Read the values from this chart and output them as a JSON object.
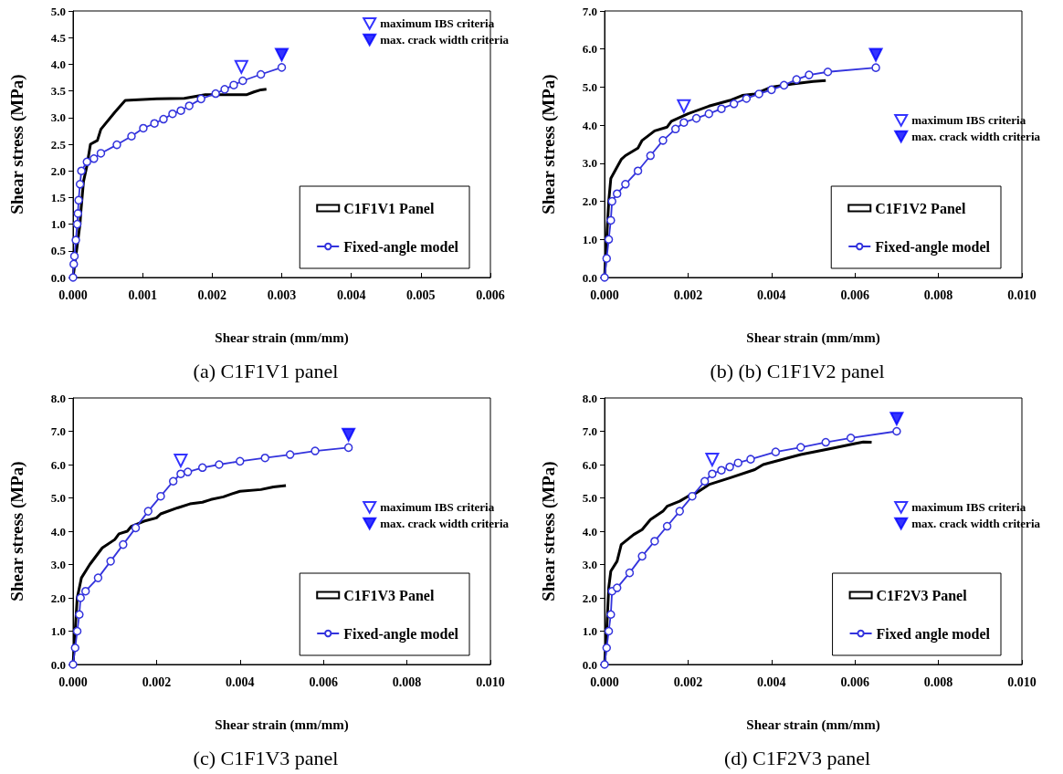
{
  "chart_data": [
    {
      "type": "line",
      "title": "(a) C1F1V1 panel",
      "xlabel": "Shear strain (mm/mm)",
      "ylabel": "Shear stress (MPa)",
      "legend": "top right",
      "grid": false,
      "xlim": [
        0,
        0.006
      ],
      "xticks": [
        {
          "value": 0,
          "label": "0.000"
        },
        {
          "value": 0.001,
          "label": "0.001"
        },
        {
          "value": 0.002,
          "label": "0.002"
        },
        {
          "value": 0.003,
          "label": "0.003"
        },
        {
          "value": 0.004,
          "label": "0.004"
        },
        {
          "value": 0.005,
          "label": "0.005"
        },
        {
          "value": 0.006,
          "label": "0.006"
        }
      ],
      "ylim": [
        0,
        5
      ],
      "yticks": [
        {
          "value": 0,
          "label": "0.0"
        },
        {
          "value": 0.5,
          "label": "0.5"
        },
        {
          "value": 1,
          "label": "1.0"
        },
        {
          "value": 1.5,
          "label": "1.5"
        },
        {
          "value": 2,
          "label": "2.0"
        },
        {
          "value": 2.5,
          "label": "2.5"
        },
        {
          "value": 3,
          "label": "3.0"
        },
        {
          "value": 3.5,
          "label": "3.5"
        },
        {
          "value": 4,
          "label": "4.0"
        },
        {
          "value": 4.5,
          "label": "4.5"
        },
        {
          "value": 5,
          "label": "5.0"
        }
      ],
      "series": [
        {
          "name": "C1F1V1 Panel",
          "color": "#000000",
          "marker": "none",
          "x": [
            0,
            5e-05,
            0.0001,
            0.00011,
            0.00015,
            0.0002,
            0.00025,
            0.00035,
            0.0004,
            0.0006,
            0.00075,
            0.0012,
            0.0016,
            0.0019,
            0.0025,
            0.0026,
            0.0027,
            0.00278
          ],
          "values": [
            0,
            0.5,
            1.0,
            1.2,
            1.8,
            2.1,
            2.5,
            2.57,
            2.78,
            3.1,
            3.32,
            3.35,
            3.36,
            3.43,
            3.43,
            3.48,
            3.52,
            3.53
          ]
        },
        {
          "name": "Fixed-angle model",
          "color": "#3333dd",
          "marker": "circle",
          "x": [
            0,
            1e-05,
            2e-05,
            4e-05,
            6e-05,
            7e-05,
            8e-05,
            0.0001,
            0.00012,
            0.0002,
            0.0003,
            0.0004,
            0.00063,
            0.00084,
            0.00101,
            0.00117,
            0.0013,
            0.00143,
            0.00155,
            0.00167,
            0.00184,
            0.00205,
            0.00218,
            0.00231,
            0.00244,
            0.0027,
            0.003
          ],
          "values": [
            0,
            0.25,
            0.4,
            0.7,
            1.0,
            1.2,
            1.45,
            1.75,
            2.0,
            2.17,
            2.23,
            2.33,
            2.49,
            2.65,
            2.8,
            2.89,
            2.97,
            3.07,
            3.13,
            3.22,
            3.35,
            3.45,
            3.53,
            3.61,
            3.69,
            3.81,
            3.94
          ]
        },
        {
          "type": "scatter",
          "name": "maximum IBS criteria",
          "color": "#0000ff",
          "marker": "triangle",
          "x": [
            0.00242
          ],
          "values": [
            3.95
          ]
        },
        {
          "type": "scatter",
          "name": "max. crack width criteria",
          "color": "#0000ff",
          "marker": "triangle",
          "x": [
            0.003
          ],
          "values": [
            4.18
          ]
        }
      ]
    },
    {
      "type": "line",
      "title": "(b) (b) C1F1V2 panel",
      "xlabel": "Shear strain (mm/mm)",
      "ylabel": "Shear stress (MPa)",
      "legend": "right",
      "grid": false,
      "xlim": [
        0,
        0.01
      ],
      "xticks": [
        {
          "value": 0,
          "label": "0.000"
        },
        {
          "value": 0.002,
          "label": "0.002"
        },
        {
          "value": 0.004,
          "label": "0.004"
        },
        {
          "value": 0.006,
          "label": "0.006"
        },
        {
          "value": 0.008,
          "label": "0.008"
        },
        {
          "value": 0.01,
          "label": "0.010"
        }
      ],
      "ylim": [
        0,
        7
      ],
      "yticks": [
        {
          "value": 0,
          "label": "0.0"
        },
        {
          "value": 1,
          "label": "1.0"
        },
        {
          "value": 2,
          "label": "2.0"
        },
        {
          "value": 3,
          "label": "3.0"
        },
        {
          "value": 4,
          "label": "4.0"
        },
        {
          "value": 5,
          "label": "5.0"
        },
        {
          "value": 6,
          "label": "6.0"
        },
        {
          "value": 7,
          "label": "7.0"
        }
      ],
      "series": [
        {
          "name": "C1F1V2 Panel",
          "color": "#000000",
          "marker": "none",
          "x": [
            0,
            5e-05,
            0.0001,
            0.00015,
            0.0003,
            0.0004,
            0.0005,
            0.0008,
            0.0009,
            0.0012,
            0.0015,
            0.0016,
            0.002,
            0.0025,
            0.003,
            0.0033,
            0.0036,
            0.004,
            0.0045,
            0.005,
            0.0053
          ],
          "values": [
            0,
            1.0,
            2.0,
            2.6,
            2.9,
            3.1,
            3.2,
            3.4,
            3.6,
            3.85,
            3.95,
            4.1,
            4.3,
            4.5,
            4.65,
            4.78,
            4.82,
            5.0,
            5.08,
            5.15,
            5.17
          ]
        },
        {
          "name": "Fixed-angle model",
          "color": "#3333dd",
          "marker": "circle",
          "x": [
            0,
            5e-05,
            0.0001,
            0.00015,
            0.00018,
            0.0003,
            0.0005,
            0.0008,
            0.0011,
            0.0014,
            0.0017,
            0.0019,
            0.0022,
            0.0025,
            0.0028,
            0.0031,
            0.0034,
            0.0037,
            0.004,
            0.0043,
            0.0046,
            0.0049,
            0.00535,
            0.0065
          ],
          "values": [
            0,
            0.5,
            1.0,
            1.5,
            2.0,
            2.2,
            2.45,
            2.8,
            3.2,
            3.6,
            3.9,
            4.07,
            4.18,
            4.3,
            4.43,
            4.56,
            4.7,
            4.82,
            4.93,
            5.05,
            5.2,
            5.32,
            5.4,
            5.51
          ]
        },
        {
          "type": "scatter",
          "name": "maximum IBS criteria",
          "color": "#0000ff",
          "marker": "triangle",
          "x": [
            0.0019
          ],
          "values": [
            4.5
          ]
        },
        {
          "type": "scatter",
          "name": "max. crack width criteria",
          "color": "#0000ff",
          "marker": "triangle",
          "x": [
            0.0065
          ],
          "values": [
            5.85
          ]
        }
      ]
    },
    {
      "type": "line",
      "title": "(c) C1F1V3 panel",
      "xlabel": "Shear strain (mm/mm)",
      "ylabel": "Shear stress (MPa)",
      "legend": "right",
      "grid": false,
      "xlim": [
        0,
        0.01
      ],
      "xticks": [
        {
          "value": 0,
          "label": "0.000"
        },
        {
          "value": 0.002,
          "label": "0.002"
        },
        {
          "value": 0.004,
          "label": "0.004"
        },
        {
          "value": 0.006,
          "label": "0.006"
        },
        {
          "value": 0.008,
          "label": "0.008"
        },
        {
          "value": 0.01,
          "label": "0.010"
        }
      ],
      "ylim": [
        0,
        8
      ],
      "yticks": [
        {
          "value": 0,
          "label": "0.0"
        },
        {
          "value": 1,
          "label": "1.0"
        },
        {
          "value": 2,
          "label": "2.0"
        },
        {
          "value": 3,
          "label": "3.0"
        },
        {
          "value": 4,
          "label": "4.0"
        },
        {
          "value": 5,
          "label": "5.0"
        },
        {
          "value": 6,
          "label": "6.0"
        },
        {
          "value": 7,
          "label": "7.0"
        },
        {
          "value": 8,
          "label": "8.0"
        }
      ],
      "series": [
        {
          "name": "C1F1V3 Panel",
          "color": "#000000",
          "marker": "none",
          "x": [
            0,
            5e-05,
            0.0001,
            0.0002,
            0.0004,
            0.0007,
            0.001,
            0.0011,
            0.0013,
            0.0014,
            0.0017,
            0.002,
            0.0021,
            0.0025,
            0.0028,
            0.0031,
            0.0033,
            0.0036,
            0.0038,
            0.004,
            0.0045,
            0.0048,
            0.0051
          ],
          "values": [
            0,
            1.0,
            2.0,
            2.6,
            3.0,
            3.5,
            3.75,
            3.92,
            4.0,
            4.15,
            4.3,
            4.4,
            4.52,
            4.7,
            4.82,
            4.87,
            4.95,
            5.03,
            5.12,
            5.2,
            5.25,
            5.33,
            5.37
          ]
        },
        {
          "name": "Fixed-angle model",
          "color": "#3333dd",
          "marker": "circle",
          "x": [
            0,
            5e-05,
            0.0001,
            0.00015,
            0.00018,
            0.0003,
            0.0006,
            0.0009,
            0.0012,
            0.0015,
            0.0018,
            0.0021,
            0.0024,
            0.00258,
            0.00275,
            0.0031,
            0.0035,
            0.004,
            0.0046,
            0.0052,
            0.0058,
            0.0066
          ],
          "values": [
            0,
            0.5,
            1.0,
            1.5,
            2.0,
            2.2,
            2.6,
            3.1,
            3.6,
            4.1,
            4.6,
            5.05,
            5.5,
            5.72,
            5.78,
            5.91,
            6.0,
            6.1,
            6.2,
            6.3,
            6.41,
            6.51
          ]
        },
        {
          "type": "scatter",
          "name": "maximum IBS criteria",
          "color": "#0000ff",
          "marker": "triangle",
          "x": [
            0.00258
          ],
          "values": [
            6.12
          ]
        },
        {
          "type": "scatter",
          "name": "max. crack width criteria",
          "color": "#0000ff",
          "marker": "triangle",
          "x": [
            0.0066
          ],
          "values": [
            6.9
          ]
        }
      ]
    },
    {
      "type": "line",
      "title": "(d) C1F2V3 panel",
      "xlabel": "Shear strain (mm/mm)",
      "ylabel": "Shear stress (MPa)",
      "legend": "right",
      "grid": false,
      "xlim": [
        0,
        0.01
      ],
      "xticks": [
        {
          "value": 0,
          "label": "0.000"
        },
        {
          "value": 0.002,
          "label": "0.002"
        },
        {
          "value": 0.004,
          "label": "0.004"
        },
        {
          "value": 0.006,
          "label": "0.006"
        },
        {
          "value": 0.008,
          "label": "0.008"
        },
        {
          "value": 0.01,
          "label": "0.010"
        }
      ],
      "ylim": [
        0,
        8
      ],
      "yticks": [
        {
          "value": 0,
          "label": "0.0"
        },
        {
          "value": 1,
          "label": "1.0"
        },
        {
          "value": 2,
          "label": "2.0"
        },
        {
          "value": 3,
          "label": "3.0"
        },
        {
          "value": 4,
          "label": "4.0"
        },
        {
          "value": 5,
          "label": "5.0"
        },
        {
          "value": 6,
          "label": "6.0"
        },
        {
          "value": 7,
          "label": "7.0"
        },
        {
          "value": 8,
          "label": "8.0"
        }
      ],
      "series": [
        {
          "name": "C1F2V3 Panel",
          "color": "#000000",
          "marker": "none",
          "x": [
            0,
            5e-05,
            0.0001,
            0.00015,
            0.0003,
            0.0004,
            0.0007,
            0.0009,
            0.001,
            0.0011,
            0.0014,
            0.0015,
            0.0018,
            0.002,
            0.0022,
            0.0025,
            0.003,
            0.0036,
            0.0038,
            0.0047,
            0.0055,
            0.006,
            0.0062,
            0.0064
          ],
          "values": [
            0,
            1.0,
            2.3,
            2.8,
            3.1,
            3.6,
            3.9,
            4.05,
            4.2,
            4.35,
            4.6,
            4.75,
            4.9,
            5.05,
            5.15,
            5.4,
            5.6,
            5.85,
            6.0,
            6.3,
            6.5,
            6.63,
            6.68,
            6.67
          ]
        },
        {
          "name": "Fixed angle model",
          "color": "#3333dd",
          "marker": "circle",
          "x": [
            0,
            5e-05,
            0.0001,
            0.00015,
            0.00018,
            0.0003,
            0.0006,
            0.0009,
            0.0012,
            0.0015,
            0.0018,
            0.0021,
            0.0024,
            0.00258,
            0.0028,
            0.003,
            0.0032,
            0.0035,
            0.0041,
            0.0047,
            0.0053,
            0.0059,
            0.007
          ],
          "values": [
            0,
            0.5,
            1.0,
            1.5,
            2.2,
            2.3,
            2.75,
            3.25,
            3.7,
            4.15,
            4.6,
            5.05,
            5.5,
            5.72,
            5.83,
            5.93,
            6.05,
            6.16,
            6.38,
            6.52,
            6.67,
            6.8,
            7.0
          ]
        },
        {
          "type": "scatter",
          "name": "maximum IBS criteria",
          "color": "#0000ff",
          "marker": "triangle",
          "x": [
            0.00258
          ],
          "values": [
            6.15
          ]
        },
        {
          "type": "scatter",
          "name": "max. crack width criteria",
          "color": "#0000ff",
          "marker": "triangle",
          "x": [
            0.007
          ],
          "values": [
            7.38
          ]
        }
      ]
    }
  ]
}
